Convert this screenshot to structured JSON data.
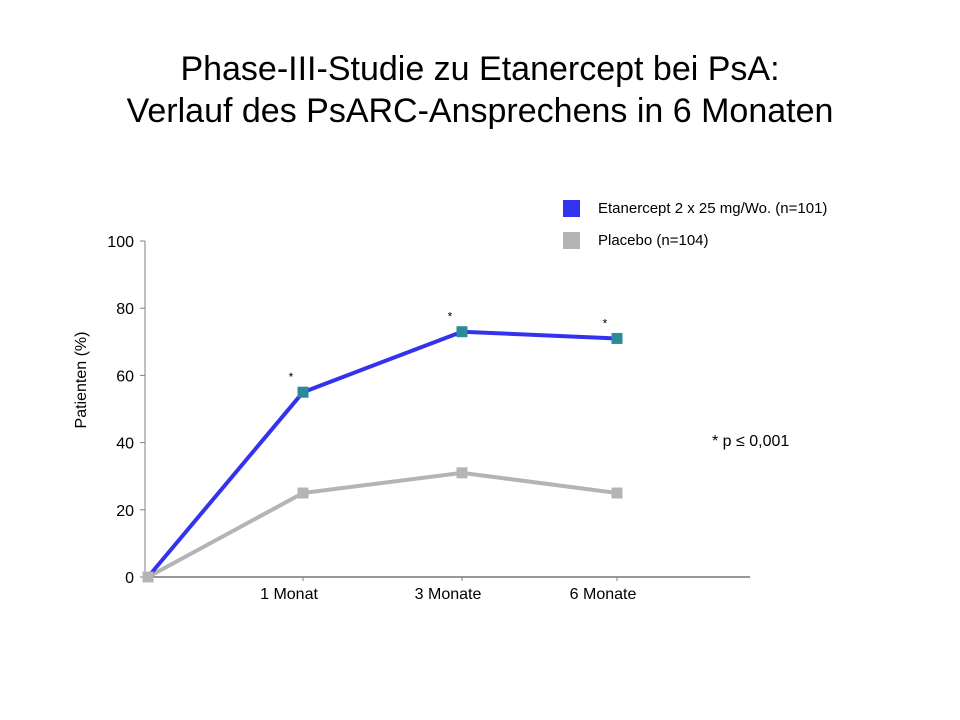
{
  "slide": {
    "title_line1": "Phase-III-Studie zu Etanercept bei PsA:",
    "title_line2": "Verlauf des PsARC-Ansprechens in 6 Monaten",
    "note": "* p ≤ 0,001"
  },
  "chart_data": {
    "type": "line",
    "ylabel": "Patienten (%)",
    "xlabel": "",
    "ylim": [
      0,
      100
    ],
    "yticks": [
      0,
      20,
      40,
      60,
      80,
      100
    ],
    "categories": [
      "",
      "1 Monat",
      "3 Monate",
      "6 Monate"
    ],
    "legend_placement": "top-right",
    "grid": false,
    "significance_marker": "*",
    "series": [
      {
        "name": "Etanercept 2 x 25 mg/Wo. (n=101)",
        "values": [
          0,
          55,
          73,
          71
        ],
        "color": "#3333ee",
        "marker_color": "#2a8a9a",
        "significant": [
          false,
          true,
          true,
          true
        ]
      },
      {
        "name": "Placebo (n=104)",
        "values": [
          0,
          25,
          31,
          25
        ],
        "color": "#b4b4b4",
        "marker_color": "#b4b4b4",
        "significant": [
          false,
          false,
          false,
          false
        ]
      }
    ]
  }
}
